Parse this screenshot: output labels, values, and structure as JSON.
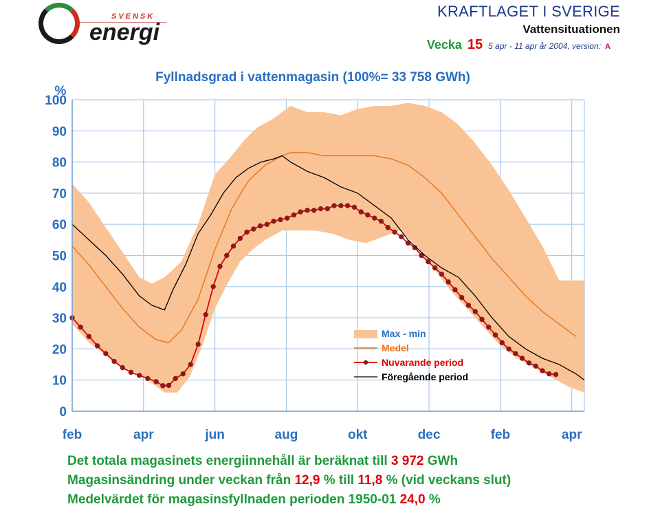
{
  "header": {
    "logo_top": "SVENSK",
    "logo_main": "energi",
    "title": "KRAFTLAGET I SVERIGE",
    "subtitle": "Vattensituationen",
    "week_label": "Vecka",
    "week_number": "15",
    "week_dates": "5 apr - 11 apr år 2004",
    "version_label": ", version:",
    "version_value": "A"
  },
  "colors": {
    "band": "#f9c396",
    "medel": "#e8741a",
    "current": "#8b1a1a",
    "previous": "#000000",
    "grid": "#a9c8ea",
    "text_blue": "#2a6fbf",
    "text_green": "#1e9a3a",
    "text_red": "#e00000"
  },
  "chart_data": {
    "type": "line",
    "title": "Fyllnadsgrad i vattenmagasin (100%= 33 758 GWh)",
    "ylabel": "%",
    "xlabel": "",
    "ylim": [
      0,
      100
    ],
    "yticks": [
      "0",
      "10",
      "20",
      "30",
      "40",
      "50",
      "60",
      "70",
      "80",
      "90",
      "100"
    ],
    "xlim": [
      0,
      61
    ],
    "xticks": [
      {
        "label": "feb",
        "x": 0
      },
      {
        "label": "apr",
        "x": 8.5
      },
      {
        "label": "jun",
        "x": 17
      },
      {
        "label": "aug",
        "x": 25.5
      },
      {
        "label": "okt",
        "x": 34
      },
      {
        "label": "dec",
        "x": 42.5
      },
      {
        "label": "feb",
        "x": 51
      },
      {
        "label": "apr",
        "x": 59.5
      }
    ],
    "grid": true,
    "legend_position": "lower-right",
    "series": [
      {
        "name": "Max - min",
        "kind": "band",
        "max": [
          [
            0,
            73
          ],
          [
            2,
            67
          ],
          [
            4,
            59
          ],
          [
            6,
            51
          ],
          [
            8,
            43
          ],
          [
            9.5,
            41
          ],
          [
            11,
            43
          ],
          [
            13,
            48
          ],
          [
            15,
            60
          ],
          [
            17,
            76
          ],
          [
            19,
            82
          ],
          [
            20.5,
            87
          ],
          [
            22,
            91
          ],
          [
            24,
            94
          ],
          [
            26,
            98
          ],
          [
            28,
            96
          ],
          [
            30,
            96
          ],
          [
            32,
            95
          ],
          [
            34,
            97
          ],
          [
            36,
            98
          ],
          [
            38,
            98
          ],
          [
            40,
            99
          ],
          [
            42,
            98
          ],
          [
            44,
            96
          ],
          [
            46,
            92
          ],
          [
            48,
            86
          ],
          [
            50,
            79
          ],
          [
            52,
            71
          ],
          [
            54,
            62
          ],
          [
            56,
            53
          ],
          [
            58,
            42
          ],
          [
            60,
            42
          ],
          [
            61,
            42
          ]
        ],
        "min": [
          [
            0,
            28
          ],
          [
            2,
            22
          ],
          [
            4,
            18
          ],
          [
            6,
            14
          ],
          [
            8,
            12
          ],
          [
            9.5,
            9
          ],
          [
            11,
            6
          ],
          [
            12.5,
            6
          ],
          [
            14,
            11
          ],
          [
            15.5,
            21
          ],
          [
            17,
            33
          ],
          [
            18.5,
            41
          ],
          [
            20,
            48
          ],
          [
            21.5,
            52
          ],
          [
            23,
            55
          ],
          [
            25,
            58
          ],
          [
            27,
            58
          ],
          [
            29,
            58
          ],
          [
            31,
            57
          ],
          [
            33,
            55
          ],
          [
            35,
            54
          ],
          [
            37,
            56
          ],
          [
            39,
            58
          ],
          [
            41,
            53
          ],
          [
            43,
            46
          ],
          [
            45,
            39
          ],
          [
            47,
            33
          ],
          [
            49,
            27
          ],
          [
            51,
            21
          ],
          [
            53,
            17
          ],
          [
            55,
            14
          ],
          [
            57,
            11
          ],
          [
            59,
            8
          ],
          [
            61,
            6
          ]
        ]
      },
      {
        "name": "Medel",
        "kind": "line",
        "points": [
          [
            0,
            53
          ],
          [
            2,
            47
          ],
          [
            4,
            40
          ],
          [
            6,
            33
          ],
          [
            8,
            27
          ],
          [
            10,
            23
          ],
          [
            11.5,
            22
          ],
          [
            13,
            26
          ],
          [
            15,
            36
          ],
          [
            17,
            52
          ],
          [
            19,
            65
          ],
          [
            21,
            74
          ],
          [
            23,
            79
          ],
          [
            25,
            82
          ],
          [
            26,
            83
          ],
          [
            28,
            83
          ],
          [
            30,
            82
          ],
          [
            32,
            82
          ],
          [
            34,
            82
          ],
          [
            36,
            82
          ],
          [
            38,
            81
          ],
          [
            40,
            79
          ],
          [
            42,
            75
          ],
          [
            44,
            70
          ],
          [
            46,
            63
          ],
          [
            48,
            56
          ],
          [
            50,
            49
          ],
          [
            52,
            43
          ],
          [
            54,
            37
          ],
          [
            56,
            32
          ],
          [
            58,
            28
          ],
          [
            60,
            24
          ]
        ]
      },
      {
        "name": "Nuvarande period",
        "kind": "line-markers",
        "points": [
          [
            0,
            30
          ],
          [
            1,
            27
          ],
          [
            2,
            24
          ],
          [
            3,
            21
          ],
          [
            4,
            18.5
          ],
          [
            5,
            16
          ],
          [
            6,
            14
          ],
          [
            7,
            12.5
          ],
          [
            8,
            11.5
          ],
          [
            9,
            10.5
          ],
          [
            10,
            9.5
          ],
          [
            10.8,
            8.2
          ],
          [
            11.5,
            8.3
          ],
          [
            12.3,
            10.5
          ],
          [
            13.2,
            12
          ],
          [
            14.1,
            15
          ],
          [
            15,
            21.5
          ],
          [
            15.9,
            31
          ],
          [
            16.8,
            40
          ],
          [
            17.6,
            46.5
          ],
          [
            18.4,
            50
          ],
          [
            19.2,
            53
          ],
          [
            20,
            55.5
          ],
          [
            20.8,
            57.5
          ],
          [
            21.6,
            58.5
          ],
          [
            22.4,
            59.5
          ],
          [
            23.2,
            60
          ],
          [
            24,
            61
          ],
          [
            24.8,
            61.5
          ],
          [
            25.6,
            62
          ],
          [
            26.4,
            63
          ],
          [
            27.2,
            64
          ],
          [
            28,
            64.5
          ],
          [
            28.8,
            64.5
          ],
          [
            29.6,
            65
          ],
          [
            30.4,
            65
          ],
          [
            31.2,
            66
          ],
          [
            32,
            66
          ],
          [
            32.8,
            66
          ],
          [
            33.6,
            65.5
          ],
          [
            34.4,
            64
          ],
          [
            35.2,
            63
          ],
          [
            36,
            62
          ],
          [
            36.8,
            61
          ],
          [
            37.6,
            59
          ],
          [
            38.4,
            57.5
          ],
          [
            39.2,
            56
          ],
          [
            40,
            54
          ],
          [
            40.8,
            52.5
          ],
          [
            41.6,
            50
          ],
          [
            42.4,
            48
          ],
          [
            43.2,
            46
          ],
          [
            44,
            44
          ],
          [
            44.8,
            41.5
          ],
          [
            45.6,
            39
          ],
          [
            46.4,
            36.5
          ],
          [
            47.2,
            34
          ],
          [
            48,
            32
          ],
          [
            48.8,
            29.5
          ],
          [
            49.6,
            27
          ],
          [
            50.4,
            24.5
          ],
          [
            51.2,
            22
          ],
          [
            52,
            20
          ],
          [
            52.8,
            18.5
          ],
          [
            53.6,
            17
          ],
          [
            54.4,
            15.5
          ],
          [
            55.2,
            14.5
          ],
          [
            56,
            13
          ],
          [
            56.8,
            12
          ],
          [
            57.6,
            11.8
          ]
        ]
      },
      {
        "name": "Föregående period",
        "kind": "line",
        "points": [
          [
            0,
            60
          ],
          [
            2,
            55
          ],
          [
            4,
            50
          ],
          [
            6,
            44
          ],
          [
            8,
            37
          ],
          [
            9.5,
            34
          ],
          [
            10.5,
            33
          ],
          [
            11,
            32.5
          ],
          [
            12,
            39
          ],
          [
            13.5,
            47
          ],
          [
            15,
            57
          ],
          [
            16.5,
            63
          ],
          [
            18,
            70
          ],
          [
            19.5,
            75
          ],
          [
            21,
            78
          ],
          [
            22.5,
            80
          ],
          [
            24,
            81
          ],
          [
            25,
            82
          ],
          [
            26,
            80
          ],
          [
            28,
            77
          ],
          [
            30,
            75
          ],
          [
            32,
            72
          ],
          [
            34,
            70
          ],
          [
            36,
            66
          ],
          [
            38,
            62
          ],
          [
            40,
            55
          ],
          [
            42,
            50
          ],
          [
            44,
            46
          ],
          [
            46,
            43
          ],
          [
            48,
            37
          ],
          [
            50,
            30
          ],
          [
            52,
            24
          ],
          [
            54,
            20
          ],
          [
            56,
            17
          ],
          [
            58,
            15
          ],
          [
            60,
            12
          ],
          [
            61,
            10
          ]
        ]
      }
    ]
  },
  "footer": {
    "line1_text": "Det totala magasinets energiinnehåll är beräknat till",
    "line1_value": "3 972",
    "line1_unit": "GWh",
    "line2_text": "Magasinsändring under veckan från",
    "line2_from": "12,9",
    "line2_mid": "% till",
    "line2_to": "11,8",
    "line2_tail": "% (vid veckans slut)",
    "line3_text": "Medelvärdet för magasinsfyllnaden perioden 1950-01",
    "line3_value": "24,0",
    "line3_unit": "%"
  }
}
